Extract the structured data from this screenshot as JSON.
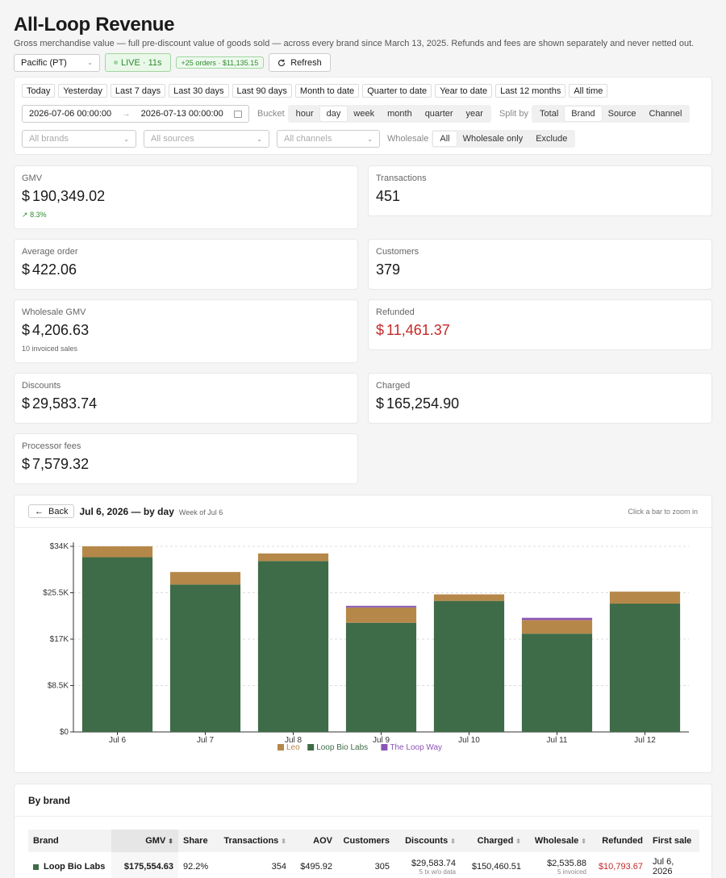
{
  "header": {
    "title": "All-Loop Revenue",
    "subtitle": "Gross merchandise value — full pre-discount value of goods sold — across every brand since March 13, 2025. Refunds and fees are shown separately and never netted out.",
    "timezone": "Pacific (PT)",
    "live": "LIVE · 11s",
    "recent_orders": "+25 orders · $11,135.15",
    "refresh": "Refresh"
  },
  "filters": {
    "ranges": [
      "Today",
      "Yesterday",
      "Last 7 days",
      "Last 30 days",
      "Last 90 days",
      "Month to date",
      "Quarter to date",
      "Year to date",
      "Last 12 months",
      "All time"
    ],
    "date_from": "2026-07-06 00:00:00",
    "date_to": "2026-07-13 00:00:00",
    "bucket_label": "Bucket",
    "buckets": [
      "hour",
      "day",
      "week",
      "month",
      "quarter",
      "year"
    ],
    "bucket_selected": "day",
    "split_label": "Split by",
    "splits": [
      "Total",
      "Brand",
      "Source",
      "Channel"
    ],
    "split_selected": "Brand",
    "brands_placeholder": "All brands",
    "sources_placeholder": "All sources",
    "channels_placeholder": "All channels",
    "wholesale_label": "Wholesale",
    "wholesale_options": [
      "All",
      "Wholesale only",
      "Exclude"
    ],
    "wholesale_selected": "All"
  },
  "stats": {
    "gmv": {
      "label": "GMV",
      "currency": "$",
      "value": "190,349.02",
      "delta": "8.3%"
    },
    "transactions": {
      "label": "Transactions",
      "value": "451"
    },
    "avg_order": {
      "label": "Average order",
      "currency": "$",
      "value": "422.06"
    },
    "customers": {
      "label": "Customers",
      "value": "379"
    },
    "wholesale_gmv": {
      "label": "Wholesale GMV",
      "currency": "$",
      "value": "4,206.63",
      "note": "10 invoiced sales"
    },
    "refunded": {
      "label": "Refunded",
      "currency": "$",
      "value": "11,461.37"
    },
    "discounts": {
      "label": "Discounts",
      "currency": "$",
      "value": "29,583.74"
    },
    "charged": {
      "label": "Charged",
      "currency": "$",
      "value": "165,254.90"
    },
    "fees": {
      "label": "Processor fees",
      "currency": "$",
      "value": "7,579.32"
    }
  },
  "chart_header": {
    "back": "Back",
    "title": "Jul 6, 2026 — by day",
    "subtitle": "Week of Jul 6",
    "hint": "Click a bar to zoom in"
  },
  "chart_data": {
    "type": "bar",
    "stacked": true,
    "categories": [
      "Jul 6",
      "Jul 7",
      "Jul 8",
      "Jul 9",
      "Jul 10",
      "Jul 11",
      "Jul 12"
    ],
    "series": [
      {
        "name": "Loop Bio Labs",
        "color": "#3e6b48",
        "values": [
          32000,
          27000,
          31300,
          20000,
          24000,
          18000,
          23500
        ]
      },
      {
        "name": "Leo",
        "color": "#b5884a",
        "values": [
          2000,
          2300,
          1400,
          2800,
          1200,
          2500,
          2200
        ]
      },
      {
        "name": "The Loop Way",
        "color": "#8a55b5",
        "values": [
          0,
          0,
          0,
          300,
          0,
          400,
          0
        ]
      }
    ],
    "legend_order": [
      "Leo",
      "Loop Bio Labs",
      "The Loop Way"
    ],
    "ylim": [
      0,
      34000
    ],
    "yticks": [
      "$0",
      "$8.5K",
      "$17K",
      "$25.5K",
      "$34K"
    ],
    "grid": true,
    "legend": "bottom"
  },
  "brand_table": {
    "title": "By brand",
    "columns": [
      "Brand",
      "GMV",
      "Share",
      "Transactions",
      "AOV",
      "Customers",
      "Discounts",
      "Charged",
      "Wholesale",
      "Refunded",
      "First sale"
    ],
    "rows": [
      {
        "brand": "Loop Bio Labs",
        "color": "#3e6b48",
        "gmv": "$175,554.63",
        "share": "92.2%",
        "transactions": "354",
        "aov": "$495.92",
        "customers": "305",
        "discounts": "$29,583.74",
        "discounts_note": "5 tx w/o data",
        "charged": "$150,460.51",
        "wholesale": "$2,535.88",
        "wholesale_note": "5 invoiced",
        "refunded": "$10,793.67",
        "first_sale": "Jul 6, 2026"
      }
    ]
  }
}
